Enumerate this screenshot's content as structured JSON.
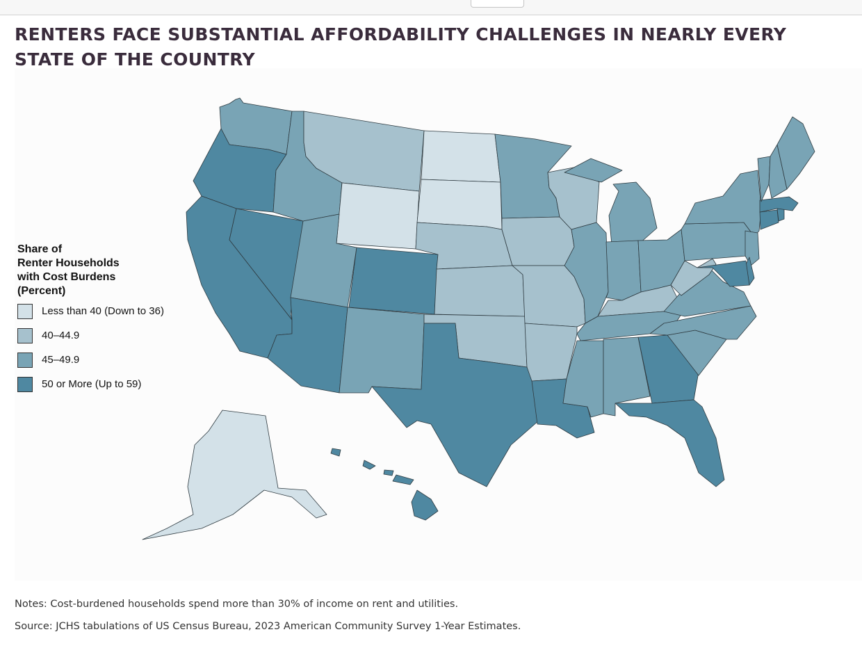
{
  "title": "RENTERS FACE SUBSTANTIAL AFFORDABILITY CHALLENGES IN NEARLY EVERY STATE OF THE COUNTRY",
  "legend": {
    "title_lines": [
      "Share of",
      "Renter Households",
      "with Cost Burdens",
      "(Percent)"
    ],
    "items": [
      {
        "label": "Less than 40 (Down to 36)",
        "color": "#d3e1e8"
      },
      {
        "label": "40–44.9",
        "color": "#a6c1cd"
      },
      {
        "label": "45–49.9",
        "color": "#79a4b5"
      },
      {
        "label": "50 or More (Up to 59)",
        "color": "#4f88a1"
      }
    ]
  },
  "notes": "Notes: Cost-burdened households spend more than 30% of income on rent and utilities.",
  "source": "Source: JCHS tabulations of US Census Bureau, 2023 American Community Survey 1-Year Estimates.",
  "states": [
    {
      "code": "WA",
      "category": 2
    },
    {
      "code": "OR",
      "category": 3
    },
    {
      "code": "CA",
      "category": 3
    },
    {
      "code": "NV",
      "category": 3
    },
    {
      "code": "ID",
      "category": 2
    },
    {
      "code": "MT",
      "category": 1
    },
    {
      "code": "WY",
      "category": 0
    },
    {
      "code": "UT",
      "category": 2
    },
    {
      "code": "AZ",
      "category": 3
    },
    {
      "code": "CO",
      "category": 3
    },
    {
      "code": "NM",
      "category": 2
    },
    {
      "code": "ND",
      "category": 0
    },
    {
      "code": "SD",
      "category": 0
    },
    {
      "code": "NE",
      "category": 1
    },
    {
      "code": "KS",
      "category": 1
    },
    {
      "code": "OK",
      "category": 1
    },
    {
      "code": "TX",
      "category": 3
    },
    {
      "code": "MN",
      "category": 2
    },
    {
      "code": "IA",
      "category": 1
    },
    {
      "code": "MO",
      "category": 1
    },
    {
      "code": "AR",
      "category": 1
    },
    {
      "code": "LA",
      "category": 3
    },
    {
      "code": "WI",
      "category": 1
    },
    {
      "code": "IL",
      "category": 2
    },
    {
      "code": "MI",
      "category": 2
    },
    {
      "code": "IN",
      "category": 2
    },
    {
      "code": "OH",
      "category": 2
    },
    {
      "code": "KY",
      "category": 1
    },
    {
      "code": "TN",
      "category": 2
    },
    {
      "code": "MS",
      "category": 2
    },
    {
      "code": "AL",
      "category": 2
    },
    {
      "code": "GA",
      "category": 3
    },
    {
      "code": "FL",
      "category": 3
    },
    {
      "code": "SC",
      "category": 2
    },
    {
      "code": "NC",
      "category": 2
    },
    {
      "code": "VA",
      "category": 2
    },
    {
      "code": "WV",
      "category": 1
    },
    {
      "code": "PA",
      "category": 2
    },
    {
      "code": "NY",
      "category": 2
    },
    {
      "code": "NJ",
      "category": 2
    },
    {
      "code": "DE",
      "category": 3
    },
    {
      "code": "MD",
      "category": 3
    },
    {
      "code": "CT",
      "category": 3
    },
    {
      "code": "RI",
      "category": 3
    },
    {
      "code": "MA",
      "category": 3
    },
    {
      "code": "VT",
      "category": 2
    },
    {
      "code": "NH",
      "category": 2
    },
    {
      "code": "ME",
      "category": 2
    },
    {
      "code": "AK",
      "category": 0
    },
    {
      "code": "HI",
      "category": 3
    }
  ]
}
